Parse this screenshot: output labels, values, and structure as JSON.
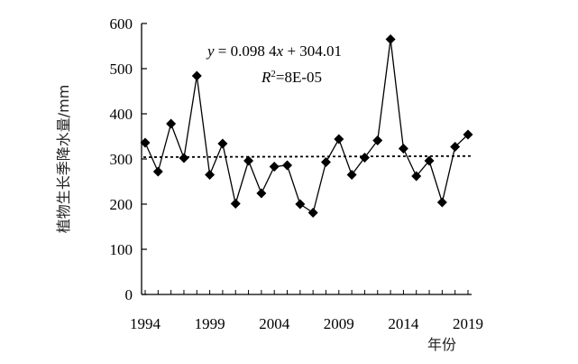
{
  "chart_data": {
    "type": "scatter",
    "xlabel": "年份",
    "ylabel": "植物生长季降水量/mm",
    "xlim": [
      1994,
      2019
    ],
    "ylim": [
      0,
      600
    ],
    "xticks": [
      "1994",
      "1999",
      "2004",
      "2009",
      "2014",
      "2019"
    ],
    "yticks": [
      "0",
      "100",
      "200",
      "300",
      "400",
      "500",
      "600"
    ],
    "series": [
      {
        "x": [
          1994,
          1995,
          1996,
          1997,
          1998,
          1999,
          2000,
          2001,
          2002,
          2003,
          2004,
          2005,
          2006,
          2007,
          2008,
          2009,
          2010,
          2011,
          2012,
          2013,
          2014,
          2015,
          2016,
          2017,
          2018,
          2019
        ],
        "values": [
          336,
          272,
          378,
          302,
          484,
          265,
          334,
          201,
          296,
          224,
          283,
          286,
          200,
          181,
          293,
          344,
          265,
          303,
          341,
          565,
          323,
          262,
          296,
          204,
          327,
          354
        ],
        "marker": "diamond",
        "line": "solid",
        "color": "#000000"
      }
    ],
    "trendline": {
      "slope": 0.0984,
      "intercept": 304.01,
      "style": "dotted",
      "equation_label": "y = 0.098 4x + 304.01",
      "r2_label": "R²=8E-05"
    },
    "grid": false,
    "legend": "none"
  }
}
